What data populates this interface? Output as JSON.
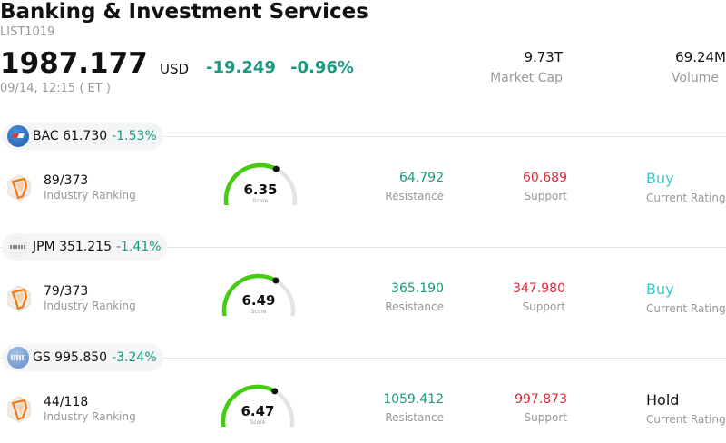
{
  "header": {
    "title": "Banking & Investment Services",
    "list_id": "LIST1019",
    "price": "1987.177",
    "currency": "USD",
    "change": "-19.249",
    "change_pct": "-0.96%",
    "timestamp": "09/14, 12:15  ( ET )",
    "market_cap_value": "9.73T",
    "market_cap_label": "Market Cap",
    "volume_value": "69.24M",
    "volume_label": "Volume"
  },
  "stocks": [
    {
      "ticker_price": "BAC 61.730",
      "change": "-1.53%",
      "ranking": "89/373",
      "ranking_label": "Industry Ranking",
      "score": "6.35",
      "score_fraction": 0.635,
      "score_label": "Score",
      "resistance": "64.792",
      "resistance_label": "Resistance",
      "support": "60.689",
      "support_label": "Support",
      "rating": "Buy",
      "rating_color": "#3cc8c8",
      "rating_label": "Current Rating",
      "logo": "bac-logo"
    },
    {
      "ticker_price": "JPM 351.215",
      "change": "-1.41%",
      "ranking": "79/373",
      "ranking_label": "Industry Ranking",
      "score": "6.49",
      "score_fraction": 0.649,
      "score_label": "Score",
      "resistance": "365.190",
      "resistance_label": "Resistance",
      "support": "347.980",
      "support_label": "Support",
      "rating": "Buy",
      "rating_color": "#3cc8c8",
      "rating_label": "Current Rating",
      "logo": "jpm-logo"
    },
    {
      "ticker_price": "GS 995.850",
      "change": "-3.24%",
      "ranking": "44/118",
      "ranking_label": "Industry Ranking",
      "score": "6.47",
      "score_fraction": 0.647,
      "score_label": "Score",
      "resistance": "1059.412",
      "resistance_label": "Resistance",
      "support": "997.873",
      "support_label": "Support",
      "rating": "Hold",
      "rating_color": "#111111",
      "rating_label": "Current Rating",
      "logo": "gs-logo"
    }
  ],
  "colors": {
    "positive": "#1a9a7e",
    "negative": "#e0283a",
    "gauge_fill": "#44cc11",
    "gauge_track": "#e2e2e8"
  }
}
